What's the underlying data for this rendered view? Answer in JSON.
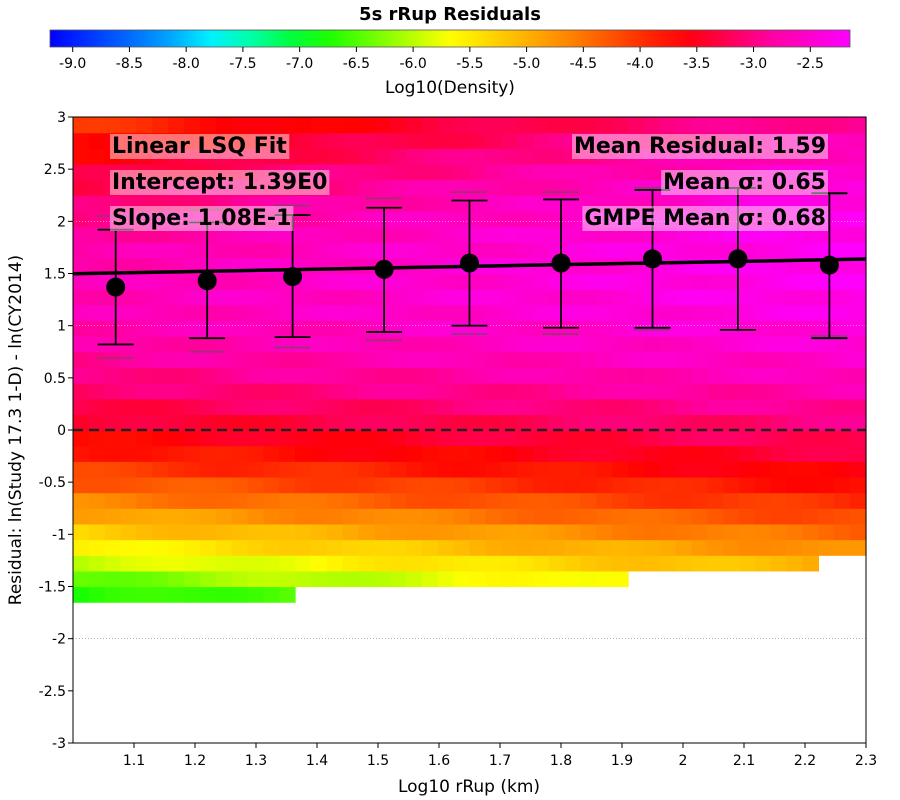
{
  "chart_data": {
    "type": "heatmap",
    "title": "5s rRup Residuals",
    "xlabel": "Log10 rRup (km)",
    "ylabel": "Residual: ln(Study 17.3 1-D) - ln(CY2014)",
    "xlim": [
      1.0,
      2.3
    ],
    "ylim": [
      -3,
      3
    ],
    "x_ticks": [
      "1.1",
      "1.2",
      "1.3",
      "1.4",
      "1.5",
      "1.6",
      "1.7",
      "1.8",
      "1.9",
      "2",
      "2.1",
      "2.2",
      "2.3"
    ],
    "y_ticks": [
      "3",
      "2.5",
      "2",
      "1.5",
      "1",
      "0.5",
      "0",
      "-0.5",
      "-1",
      "-1.5",
      "-2",
      "-2.5",
      "-3"
    ],
    "colorbar": {
      "label": "Log10(Density)",
      "range": [
        -9.2,
        -2.15
      ],
      "ticks": [
        "-9.0",
        "-8.5",
        "-8.0",
        "-7.5",
        "-7.0",
        "-6.5",
        "-6.0",
        "-5.5",
        "-5.0",
        "-4.5",
        "-4.0",
        "-3.5",
        "-3.0",
        "-2.5"
      ]
    },
    "fit": {
      "intercept": 1.39,
      "slope": 0.108
    },
    "binned_means": {
      "x": [
        1.07,
        1.22,
        1.36,
        1.51,
        1.65,
        1.8,
        1.95,
        2.09,
        2.24
      ],
      "mean": [
        1.37,
        1.43,
        1.47,
        1.54,
        1.6,
        1.6,
        1.64,
        1.64,
        1.58
      ],
      "sigma_upper": [
        1.92,
        1.99,
        2.06,
        2.13,
        2.2,
        2.21,
        2.3,
        2.32,
        2.27
      ],
      "sigma_lower": [
        0.82,
        0.88,
        0.89,
        0.94,
        1.0,
        0.98,
        0.98,
        0.96,
        0.88
      ],
      "gmpe_upper": [
        2.05,
        2.11,
        2.15,
        2.22,
        2.28,
        2.28,
        2.32,
        2.32,
        2.26
      ],
      "gmpe_lower": [
        0.69,
        0.75,
        0.79,
        0.86,
        0.92,
        0.92,
        0.96,
        0.96,
        0.9
      ]
    },
    "zero_line": 0,
    "annotations": {
      "fit_title": "Linear LSQ Fit",
      "intercept": "Intercept: 1.39E0",
      "slope": "Slope: 1.08E-1",
      "mean_residual": "Mean Residual: 1.59",
      "mean_sigma": "Mean σ: 0.65",
      "gmpe_sigma": "GMPE Mean σ: 0.68"
    }
  }
}
